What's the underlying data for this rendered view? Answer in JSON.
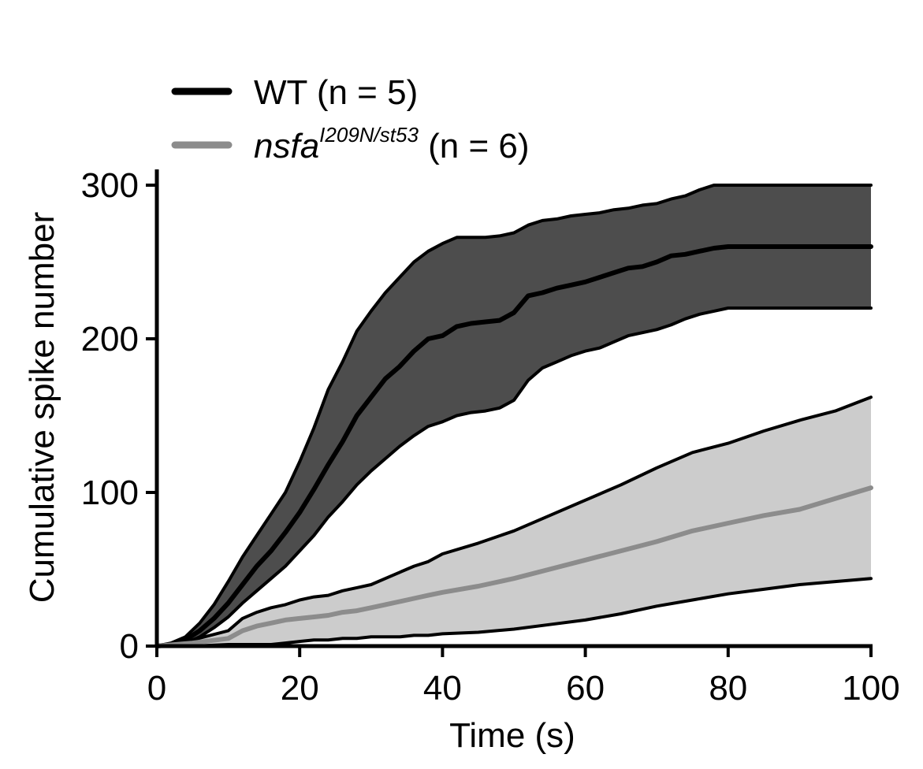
{
  "chart_data": {
    "type": "area",
    "xlabel": "Time (s)",
    "ylabel": "Cumulative spike number",
    "xlim": [
      0,
      100
    ],
    "ylim": [
      0,
      300
    ],
    "xticks": [
      0,
      20,
      40,
      60,
      80,
      100
    ],
    "yticks": [
      0,
      100,
      200,
      300
    ],
    "grid": false,
    "legend_position": "top-left",
    "legend": [
      {
        "label": "WT (n = 5)",
        "color": "#000000"
      },
      {
        "label_main": "nsfa",
        "label_sup": "I209N/st53",
        "label_suffix": " (n = 6)",
        "color": "#8c8c8c"
      }
    ],
    "series": [
      {
        "name": "WT (n = 5)",
        "line_color": "#000000",
        "band_color": "#4d4d4d",
        "x": [
          0,
          2,
          4,
          6,
          8,
          10,
          12,
          14,
          16,
          18,
          20,
          22,
          24,
          26,
          28,
          30,
          32,
          34,
          36,
          38,
          40,
          42,
          44,
          46,
          48,
          50,
          52,
          54,
          56,
          58,
          60,
          62,
          64,
          66,
          68,
          70,
          72,
          74,
          76,
          78,
          80,
          100
        ],
        "mean": [
          0,
          1,
          4,
          10,
          18,
          28,
          40,
          52,
          62,
          74,
          87,
          102,
          118,
          133,
          150,
          162,
          174,
          182,
          192,
          200,
          202,
          208,
          210,
          211,
          212,
          217,
          228,
          230,
          233,
          235,
          237,
          240,
          243,
          246,
          247,
          250,
          254,
          255,
          257,
          259,
          260,
          260
        ],
        "upper": [
          0,
          2,
          6,
          15,
          27,
          42,
          58,
          72,
          86,
          100,
          120,
          142,
          167,
          185,
          205,
          218,
          230,
          240,
          250,
          257,
          262,
          266,
          266,
          266,
          267,
          269,
          274,
          277,
          278,
          280,
          281,
          282,
          284,
          285,
          287,
          288,
          291,
          293,
          297,
          300,
          300,
          300
        ],
        "lower": [
          0,
          0,
          2,
          6,
          12,
          19,
          28,
          36,
          44,
          52,
          62,
          72,
          84,
          94,
          105,
          114,
          122,
          130,
          137,
          143,
          146,
          150,
          152,
          153,
          155,
          160,
          173,
          181,
          185,
          189,
          192,
          194,
          198,
          202,
          204,
          206,
          209,
          213,
          216,
          218,
          220,
          220
        ]
      },
      {
        "name": "nsfa I209N/st53 (n = 6)",
        "line_color": "#8c8c8c",
        "band_color": "#cccccc",
        "x": [
          0,
          5,
          10,
          12,
          14,
          16,
          18,
          20,
          22,
          24,
          26,
          28,
          30,
          32,
          34,
          36,
          38,
          40,
          45,
          50,
          55,
          60,
          65,
          70,
          75,
          80,
          85,
          90,
          95,
          100
        ],
        "mean": [
          0,
          2,
          5,
          10,
          13,
          15,
          17,
          18,
          19,
          20,
          22,
          23,
          25,
          27,
          29,
          31,
          33,
          35,
          39,
          44,
          50,
          56,
          62,
          68,
          75,
          80,
          85,
          89,
          96,
          103
        ],
        "upper": [
          0,
          4,
          10,
          18,
          22,
          25,
          27,
          30,
          32,
          33,
          36,
          38,
          40,
          44,
          48,
          52,
          55,
          60,
          67,
          75,
          85,
          95,
          105,
          116,
          126,
          132,
          140,
          147,
          153,
          162
        ],
        "lower": [
          0,
          0,
          1,
          1,
          1,
          1,
          2,
          3,
          4,
          4,
          5,
          5,
          6,
          6,
          6,
          7,
          7,
          8,
          9,
          11,
          14,
          17,
          21,
          26,
          30,
          34,
          37,
          40,
          42,
          44
        ]
      }
    ]
  }
}
